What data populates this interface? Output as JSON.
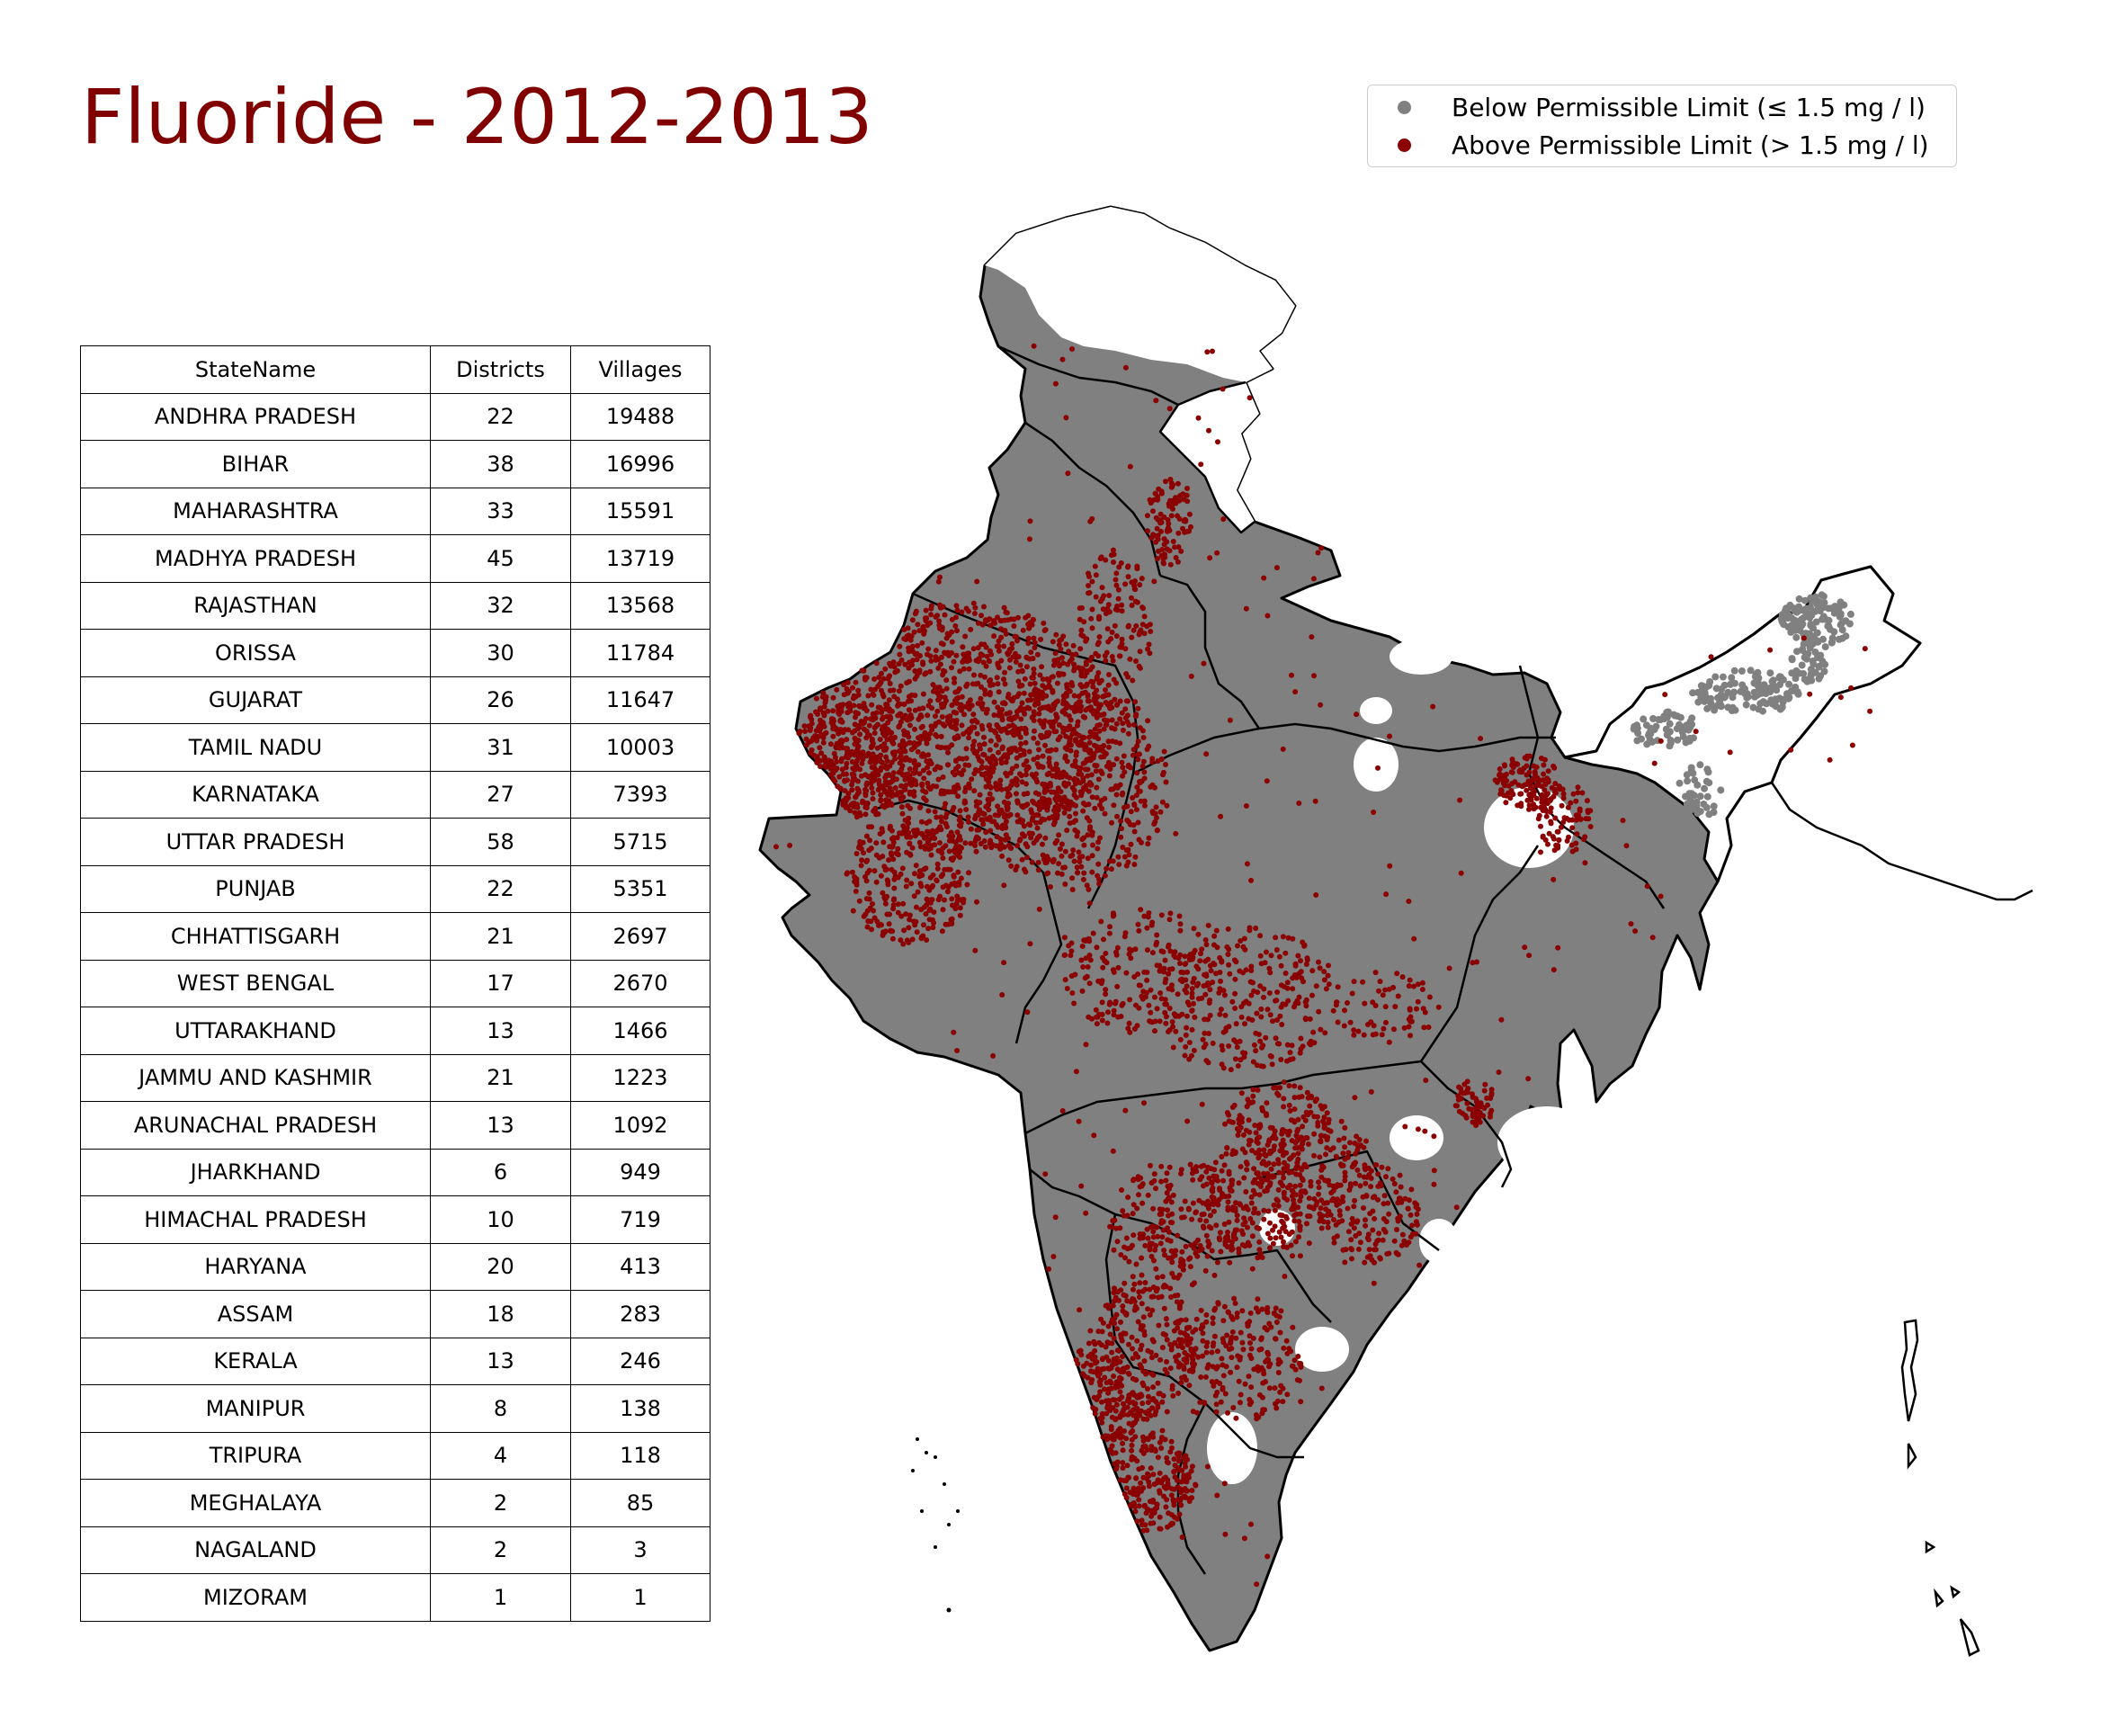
{
  "title": "Fluoride - 2012-2013",
  "legend": [
    {
      "label": "Below Permissible Limit (≤ 1.5 mg / l)",
      "color": "#808080"
    },
    {
      "label": "Above Permissible Limit (> 1.5 mg / l)",
      "color": "#8b0000"
    }
  ],
  "table": {
    "headers": [
      "StateName",
      "Districts",
      "Villages"
    ],
    "rows": [
      [
        "ANDHRA PRADESH",
        "22",
        "19488"
      ],
      [
        "BIHAR",
        "38",
        "16996"
      ],
      [
        "MAHARASHTRA",
        "33",
        "15591"
      ],
      [
        "MADHYA PRADESH",
        "45",
        "13719"
      ],
      [
        "RAJASTHAN",
        "32",
        "13568"
      ],
      [
        "ORISSA",
        "30",
        "11784"
      ],
      [
        "GUJARAT",
        "26",
        "11647"
      ],
      [
        "TAMIL NADU",
        "31",
        "10003"
      ],
      [
        "KARNATAKA",
        "27",
        "7393"
      ],
      [
        "UTTAR PRADESH",
        "58",
        "5715"
      ],
      [
        "PUNJAB",
        "22",
        "5351"
      ],
      [
        "CHHATTISGARH",
        "21",
        "2697"
      ],
      [
        "WEST BENGAL",
        "17",
        "2670"
      ],
      [
        "UTTARAKHAND",
        "13",
        "1466"
      ],
      [
        "JAMMU AND KASHMIR",
        "21",
        "1223"
      ],
      [
        "ARUNACHAL PRADESH",
        "13",
        "1092"
      ],
      [
        "JHARKHAND",
        "6",
        "949"
      ],
      [
        "HIMACHAL PRADESH",
        "10",
        "719"
      ],
      [
        "HARYANA",
        "20",
        "413"
      ],
      [
        "ASSAM",
        "18",
        "283"
      ],
      [
        "KERALA",
        "13",
        "246"
      ],
      [
        "MANIPUR",
        "8",
        "138"
      ],
      [
        "TRIPURA",
        "4",
        "118"
      ],
      [
        "MEGHALAYA",
        "2",
        "85"
      ],
      [
        "NAGALAND",
        "2",
        "3"
      ],
      [
        "MIZORAM",
        "1",
        "1"
      ]
    ]
  },
  "map": {
    "region": "India",
    "below_color": "#808080",
    "above_color": "#8b0000"
  }
}
